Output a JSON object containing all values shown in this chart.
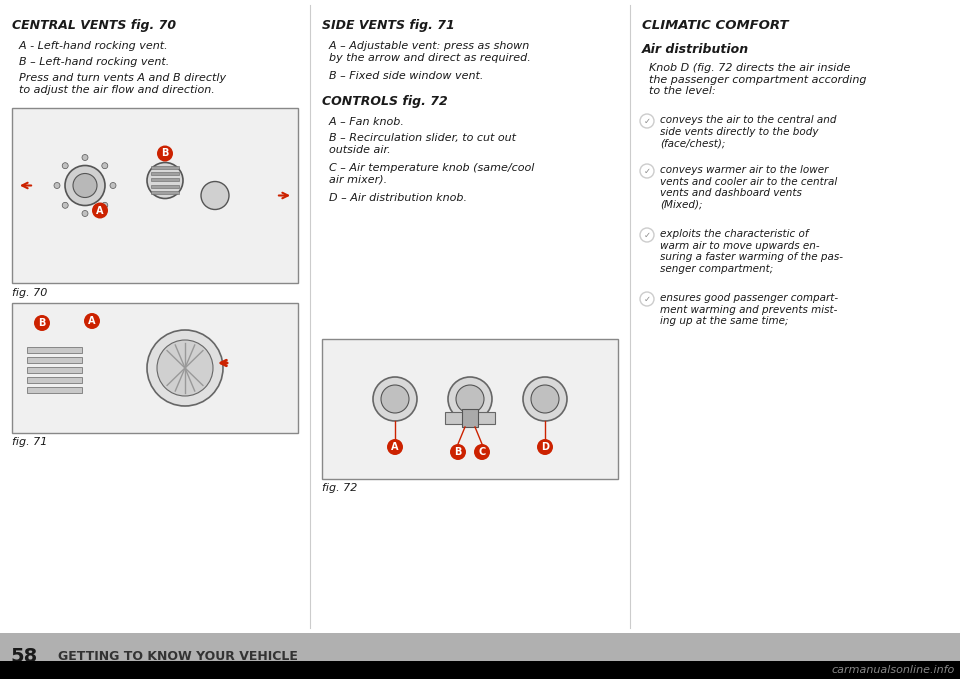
{
  "bg_color": "#ffffff",
  "footer_bg": "#b0b0b0",
  "footer_black_bg": "#000000",
  "page_number": "58",
  "footer_text": "GETTING TO KNOW YOUR VEHICLE",
  "watermark_text": "carmanualsonline.info",
  "col1_title": "CENTRAL VENTS fig. 70",
  "col1_lines": [
    "  A - Left-hand rocking vent.",
    "  B – Left-hand rocking vent.",
    "  Press and turn vents A and B directly\n  to adjust the air flow and direction."
  ],
  "fig70_caption": "fig. 70",
  "fig71_caption": "fig. 71",
  "col2_title": "SIDE VENTS fig. 71",
  "col2_lines": [
    "  A – Adjustable vent: press as shown\n  by the arrow and direct as required.",
    "  B – Fixed side window vent."
  ],
  "col2_title2": "CONTROLS fig. 72",
  "col2_lines2": [
    "  A – Fan knob.",
    "  B – Recirculation slider, to cut out\n  outside air.",
    "  C – Air temperature knob (same/cool\n  air mixer).",
    "  D – Air distribution knob."
  ],
  "fig72_caption": "fig. 72",
  "col3_title": "CLIMATIC COMFORT",
  "col3_subtitle": "Air distribution",
  "col3_para": "  Knob D (fig. 72 directs the air inside\n  the passenger compartment according\n  to the level:",
  "col3_bullets": [
    "conveys the air to the central and\nside vents directly to the body\n(face/chest);",
    "conveys warmer air to the lower\nvents and cooler air to the central\nvents and dashboard vents\n(Mixed);",
    "exploits the characteristic of\nwarm air to move upwards en-\nsuring a faster warming of the pas-\nsenger compartment;",
    "ensures good passenger compart-\nment warming and prevents mist-\ning up at the same time;"
  ],
  "divider_color": "#cccccc",
  "text_color": "#1a1a1a",
  "title_color": "#1a1a1a",
  "red_color": "#cc2200",
  "label_bg": "#cc2200"
}
